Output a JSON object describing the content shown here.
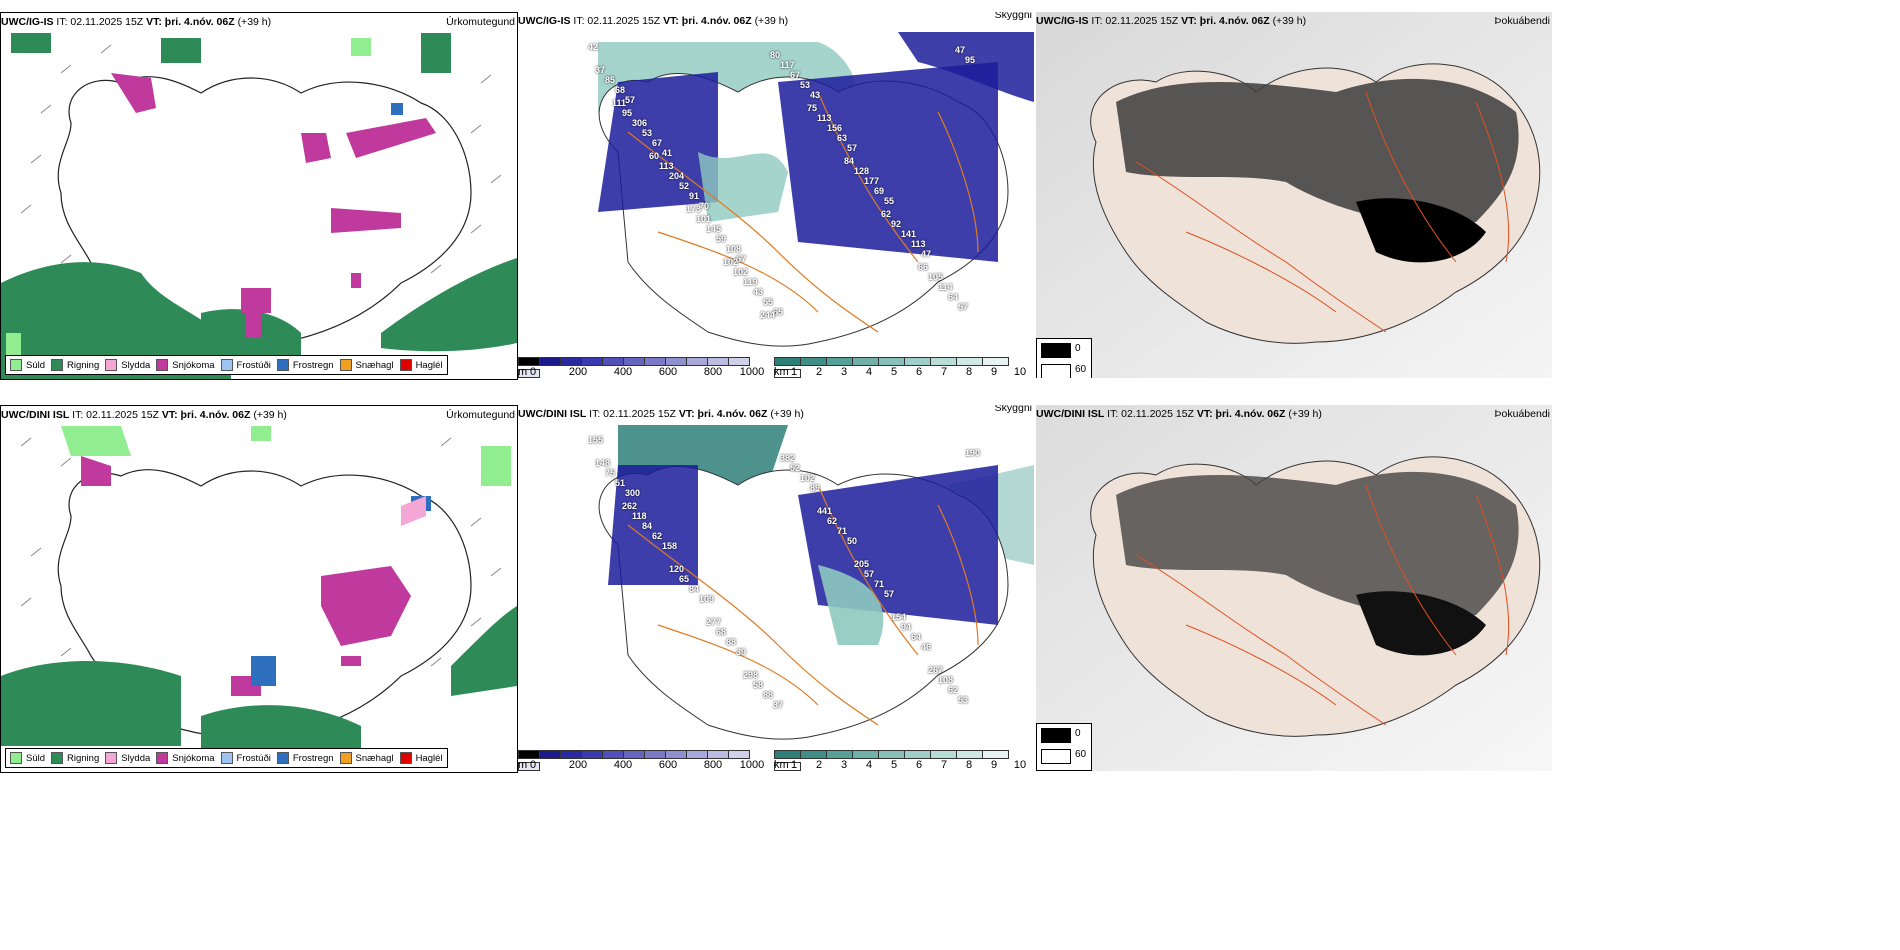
{
  "rows": [
    {
      "model": "UWC/IG-IS",
      "it": "IT: 02.11.2025 15Z",
      "vt": "VT: þri. 4.nóv. 06Z",
      "lead": "(+39 h)"
    },
    {
      "model": "UWC/DINI ISL",
      "it": "IT: 02.11.2025 15Z",
      "vt": "VT: þri. 4.nóv. 06Z",
      "lead": "(+39 h)"
    }
  ],
  "titles": {
    "precip": "Úrkomutegund",
    "visibility": "Skyggni",
    "fog": "Þokuábendi"
  },
  "precip_legend": [
    {
      "label": "Súld",
      "color": "#90ee90"
    },
    {
      "label": "Rigning",
      "color": "#2e8b57"
    },
    {
      "label": "Slydda",
      "color": "#f4a6d7"
    },
    {
      "label": "Snjókoma",
      "color": "#c0399c"
    },
    {
      "label": "Frostúði",
      "color": "#9ec3f0"
    },
    {
      "label": "Frostregn",
      "color": "#2f6fc0"
    },
    {
      "label": "Snæhagl",
      "color": "#f0a020"
    },
    {
      "label": "Haglél",
      "color": "#e00000"
    }
  ],
  "visibility_scale": {
    "unit_m": "m",
    "ticks_m": [
      "0",
      "200",
      "400",
      "600",
      "800",
      "1000"
    ],
    "unit_km": "km",
    "ticks_km": [
      "1",
      "2",
      "3",
      "4",
      "5",
      "6",
      "7",
      "8",
      "9",
      "10"
    ]
  },
  "fog_legend": {
    "low": "0",
    "high": "60"
  },
  "vis_labels_top": [
    "42",
    "57",
    "41",
    "70",
    "57",
    "65",
    "43",
    "57",
    "55",
    "47",
    "57",
    "68",
    "67",
    "91",
    "108",
    "55",
    "53",
    "63",
    "69",
    "113",
    "64",
    "85",
    "53",
    "52",
    "59",
    "43",
    "67",
    "156",
    "177",
    "141",
    "114",
    "37",
    "306",
    "204",
    "145",
    "119",
    "117",
    "113",
    "128",
    "92",
    "105",
    "95",
    "95",
    "113",
    "101",
    "102",
    "80",
    "75",
    "84",
    "62",
    "66",
    "47",
    "111",
    "60",
    "173",
    "102",
    "244"
  ],
  "vis_labels_bottom": [
    "155",
    "300",
    "158",
    "109",
    "39",
    "37",
    "89",
    "50",
    "57",
    "46",
    "53",
    "51",
    "62",
    "84",
    "88",
    "88",
    "102",
    "71",
    "71",
    "64",
    "62",
    "75",
    "84",
    "65",
    "68",
    "58",
    "52",
    "62",
    "57",
    "94",
    "108",
    "148",
    "118",
    "120",
    "277",
    "298",
    "382",
    "441",
    "205",
    "154",
    "267",
    "190",
    "262"
  ]
}
